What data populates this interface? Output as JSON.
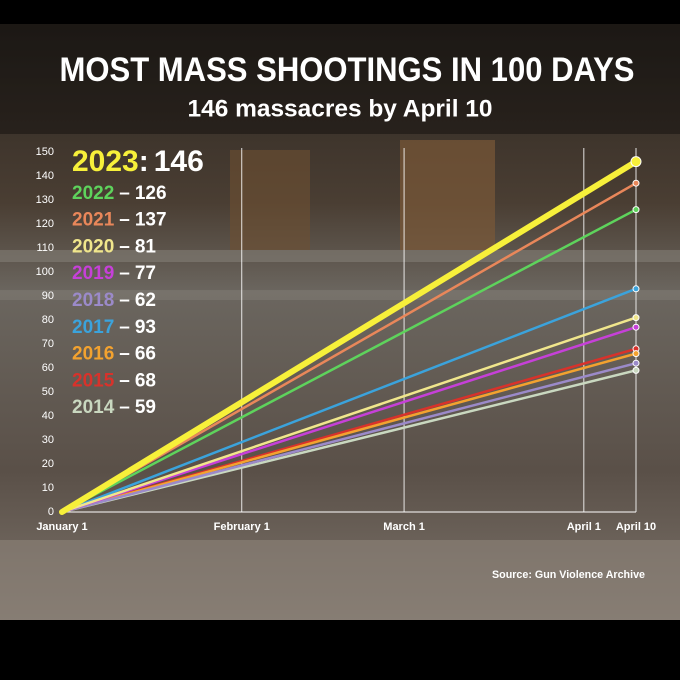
{
  "chart_data": {
    "type": "line",
    "title": "MOST MASS SHOOTINGS IN 100 DAYS",
    "subtitle": "146 massacres by April 10",
    "source": "Source: Gun Violence Archive",
    "x": [
      0,
      99
    ],
    "xlim": [
      0,
      99
    ],
    "xticks": [
      {
        "value": 0,
        "label": "January 1"
      },
      {
        "value": 31,
        "label": "February 1"
      },
      {
        "value": 59,
        "label": "March 1"
      },
      {
        "value": 90,
        "label": "April 1"
      },
      {
        "value": 99,
        "label": "April 10"
      }
    ],
    "ylim": [
      0,
      150
    ],
    "yticks": [
      0,
      10,
      20,
      30,
      40,
      50,
      60,
      70,
      80,
      90,
      100,
      110,
      120,
      130,
      140,
      150
    ],
    "grid": true,
    "series": [
      {
        "name": "2023",
        "separator": ":",
        "color": "#f7f03a",
        "values": [
          0,
          146
        ]
      },
      {
        "name": "2022",
        "separator": "–",
        "color": "#5ed35c",
        "values": [
          0,
          126
        ]
      },
      {
        "name": "2021",
        "separator": "–",
        "color": "#e9875a",
        "values": [
          0,
          137
        ]
      },
      {
        "name": "2020",
        "separator": "–",
        "color": "#f0e68c",
        "values": [
          0,
          81
        ]
      },
      {
        "name": "2019",
        "separator": "–",
        "color": "#c640d8",
        "values": [
          0,
          77
        ]
      },
      {
        "name": "2018",
        "separator": "–",
        "color": "#9b8ac9",
        "values": [
          0,
          62
        ]
      },
      {
        "name": "2017",
        "separator": "–",
        "color": "#3ba3dc",
        "values": [
          0,
          93
        ]
      },
      {
        "name": "2016",
        "separator": "–",
        "color": "#f3a22f",
        "values": [
          0,
          66
        ]
      },
      {
        "name": "2015",
        "separator": "–",
        "color": "#d8322b",
        "values": [
          0,
          68
        ]
      },
      {
        "name": "2014",
        "separator": "–",
        "color": "#c9d8c0",
        "values": [
          0,
          59
        ]
      }
    ]
  }
}
